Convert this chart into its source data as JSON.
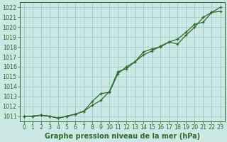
{
  "xlabel": "Graphe pression niveau de la mer (hPa)",
  "ylim": [
    1010.5,
    1022.5
  ],
  "xlim": [
    -0.5,
    23.5
  ],
  "yticks": [
    1011,
    1012,
    1013,
    1014,
    1015,
    1016,
    1017,
    1018,
    1019,
    1020,
    1021,
    1022
  ],
  "xticks": [
    0,
    1,
    2,
    3,
    4,
    5,
    6,
    7,
    8,
    9,
    10,
    11,
    12,
    13,
    14,
    15,
    16,
    17,
    18,
    19,
    20,
    21,
    22,
    23
  ],
  "background_color": "#cce8e4",
  "grid_color": "#99cccc",
  "line_color": "#2d6a2d",
  "series1": [
    1011.0,
    1011.0,
    1011.1,
    1011.0,
    1010.8,
    1011.0,
    1011.2,
    1011.5,
    1012.1,
    1012.6,
    1013.5,
    1015.5,
    1015.8,
    1016.5,
    1017.2,
    1017.6,
    1018.1,
    1018.5,
    1018.3,
    1019.2,
    1020.0,
    1021.0,
    1021.5,
    1021.6
  ],
  "series2": [
    1011.0,
    1011.0,
    1011.1,
    1011.0,
    1010.8,
    1011.0,
    1011.2,
    1011.5,
    1012.5,
    1013.3,
    1013.4,
    1015.3,
    1016.0,
    1016.5,
    1017.5,
    1017.8,
    1018.0,
    1018.5,
    1018.8,
    1019.5,
    1020.3,
    1020.5,
    1021.5,
    1022.0
  ],
  "tick_fontsize": 5.8,
  "label_fontsize": 7.0,
  "figwidth": 3.2,
  "figheight": 2.0
}
